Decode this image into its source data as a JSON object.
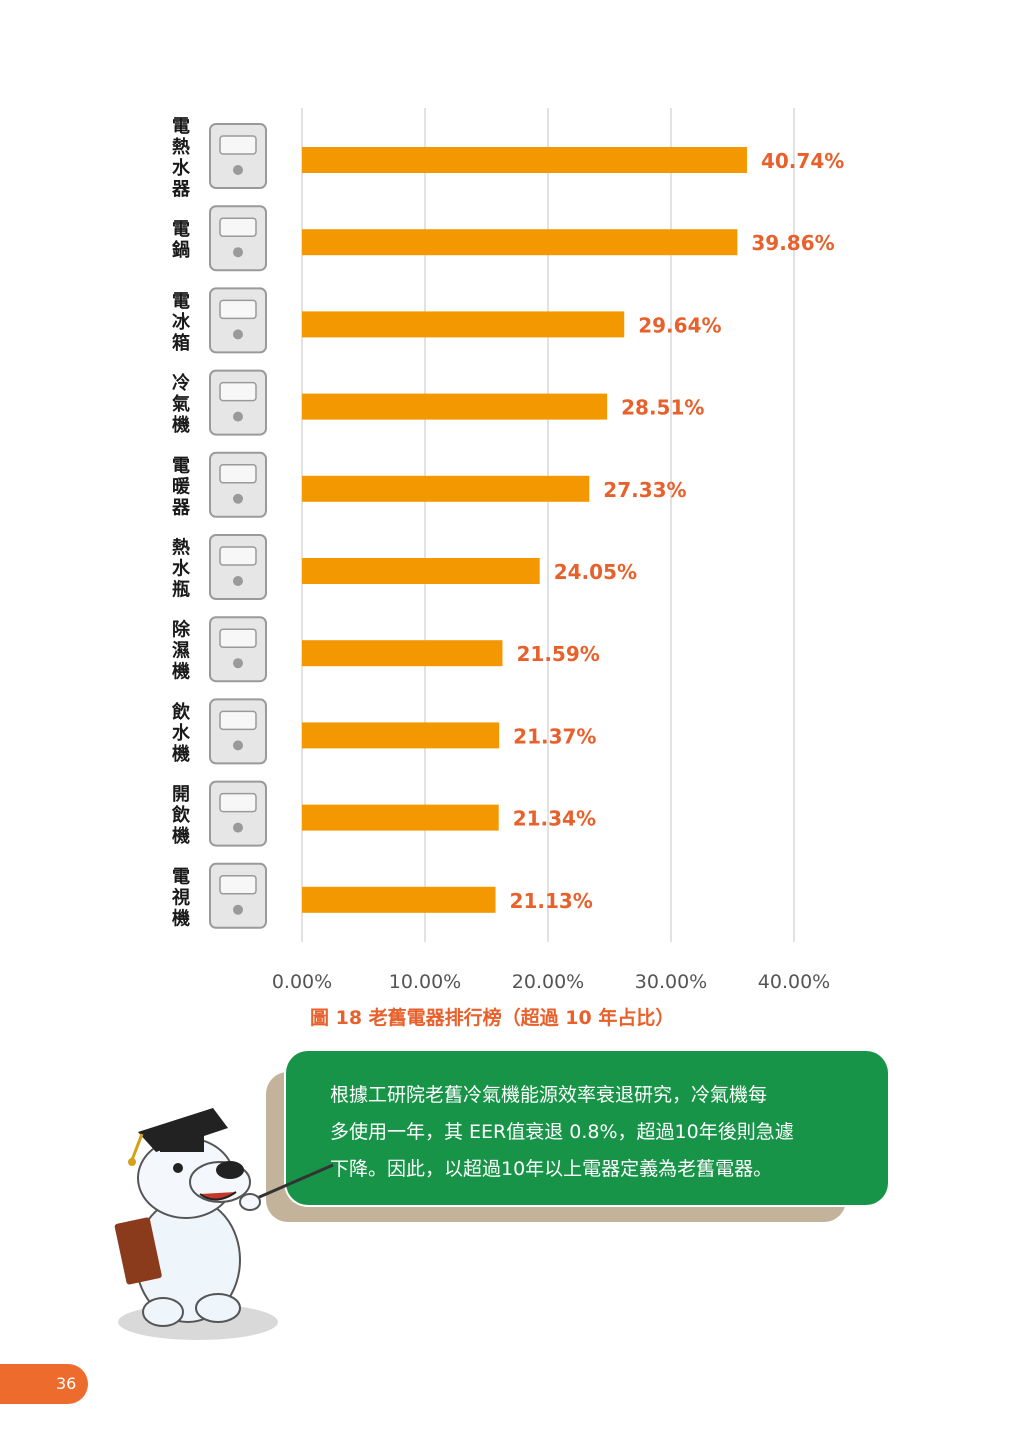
{
  "chart_data": {
    "type": "bar",
    "orientation": "horizontal",
    "categories": [
      "電熱水器",
      "電鍋",
      "電冰箱",
      "冷氣機",
      "電暖器",
      "熱水瓶",
      "除濕機",
      "飲水機",
      "開飲機",
      "電視機"
    ],
    "values": [
      40.74,
      39.86,
      29.64,
      28.51,
      27.33,
      24.05,
      21.59,
      21.37,
      21.34,
      21.13
    ],
    "value_labels": [
      "40.74%",
      "39.86%",
      "29.64%",
      "28.51%",
      "27.33%",
      "24.05%",
      "21.59%",
      "21.37%",
      "21.34%",
      "21.13%"
    ],
    "xticks": [
      "0.00%",
      "10.00%",
      "20.00%",
      "30.00%",
      "40.00%"
    ],
    "xlim": [
      0,
      40
    ],
    "title": "",
    "xlabel": "",
    "ylabel": "",
    "grid": "vertical",
    "bar_color": "#f39800",
    "label_color": "#e8612c",
    "icons": [
      "water-heater-icon",
      "rice-cooker-icon",
      "refrigerator-icon",
      "air-conditioner-icon",
      "electric-heater-icon",
      "thermos-icon",
      "dehumidifier-icon",
      "water-dispenser-icon",
      "hot-water-dispenser-icon",
      "television-icon"
    ]
  },
  "caption": "圖 18 老舊電器排行榜（超過 10 年占比）",
  "note": {
    "lines": [
      "根據工研院老舊冷氣機能源效率衰退研究，冷氣機每",
      "多使用一年，其 EER值衰退 0.8%，超過10年後則急遽",
      "下降。因此，以超過10年以上電器定義為老舊電器。"
    ]
  },
  "page_number": "36",
  "colors": {
    "accent": "#e8612c",
    "bar": "#f39800",
    "note_bg": "#179448",
    "note_shadow": "#c3b39b"
  }
}
